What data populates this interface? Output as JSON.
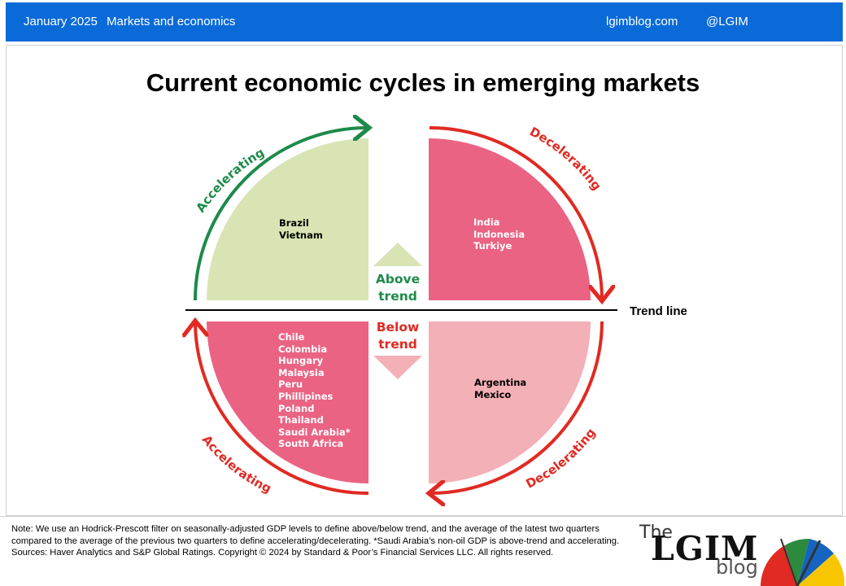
{
  "header": {
    "date": "January 2025",
    "section": "Markets and economics",
    "site": "lgimblog.com",
    "handle": "@LGIM"
  },
  "title": "Current economic cycles in emerging markets",
  "quadrants": {
    "top_left": {
      "countries": [
        "Brazil",
        "Vietnam"
      ],
      "arrow_label": "Accelerating",
      "fill": "#d8e4b4",
      "arrow_color": "#1e8a4a"
    },
    "top_right": {
      "countries": [
        "India",
        "Indonesia",
        "Turkiye"
      ],
      "arrow_label": "Decelerating",
      "fill": "#ea6383",
      "arrow_color": "#e02a23"
    },
    "bottom_left": {
      "countries": [
        "Chile",
        "Colombia",
        "Hungary",
        "Malaysia",
        "Peru",
        "Phillipines",
        "Poland",
        "Thailand",
        "Saudi Arabia*",
        "South Africa"
      ],
      "arrow_label": "Accelerating",
      "fill": "#ea6383",
      "arrow_color": "#e02a23"
    },
    "bottom_right": {
      "countries": [
        "Argentina",
        "Mexico"
      ],
      "arrow_label": "Decelerating",
      "fill": "#f4b0b7",
      "arrow_color": "#e02a23"
    }
  },
  "center": {
    "above": "Above\ntrend",
    "below": "Below\ntrend",
    "above_color": "#1e8a4a",
    "below_color": "#e02a23"
  },
  "trend_line_label": "Trend line",
  "footer": {
    "note": "Note: We use an Hodrick-Prescott filter on seasonally-adjusted GDP levels to define above/below trend, and the average of the latest two quarters compared to the average of the previous two quarters to define accelerating/decelerating. *Saudi Arabia’s non-oil GDP is above-trend and accelerating.",
    "sources": "Sources: Haver Analytics and S&P Global Ratings. Copyright © 2024 by Standard & Poor’s Financial Services LLC. All rights reserved."
  },
  "logo": {
    "the": "The",
    "lgim": "LGIM",
    "blog": "blog"
  }
}
